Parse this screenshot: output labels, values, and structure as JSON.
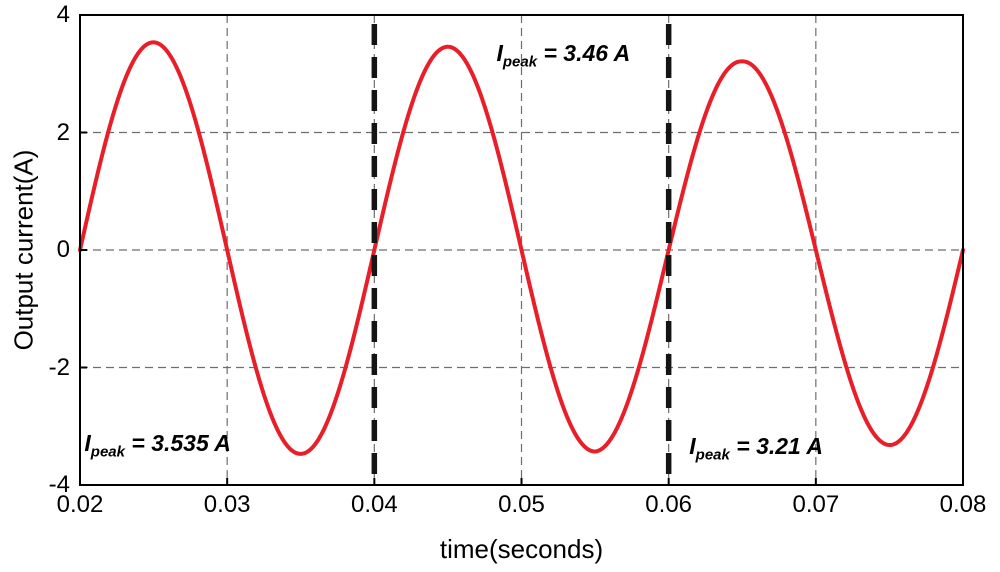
{
  "chart_data": {
    "type": "line",
    "title": "",
    "xlabel": "time(seconds)",
    "ylabel": "Output current(A)",
    "xlim": [
      0.02,
      0.08
    ],
    "ylim": [
      -4,
      4
    ],
    "xticks": [
      "0.02",
      "0.03",
      "0.04",
      "0.05",
      "0.06",
      "0.07",
      "0.08"
    ],
    "xtick_values": [
      0.02,
      0.03,
      0.04,
      0.05,
      0.06,
      0.07,
      0.08
    ],
    "yticks": [
      "4",
      "2",
      "0",
      "-2",
      "-4"
    ],
    "ytick_values": [
      4,
      2,
      0,
      -2,
      -4
    ],
    "grid": true,
    "legend": "none",
    "colors": {
      "background": "#ffffff",
      "grid": "#6e6e6e",
      "frame": "#000000",
      "cursor": "#141414",
      "series": "#e81f29"
    },
    "series": [
      {
        "name": "output current",
        "color": "#e81f29",
        "waveform": "sine",
        "frequency_hz": 50,
        "zero_crossing_t": 0.02,
        "amplitude_anchors": {
          "t": [
            0.02,
            0.025,
            0.035,
            0.045,
            0.055,
            0.065,
            0.075,
            0.08
          ],
          "a": [
            3.55,
            3.535,
            3.47,
            3.46,
            3.43,
            3.21,
            3.32,
            3.35
          ]
        },
        "peaks": [
          {
            "t": 0.025,
            "amps": 3.535
          },
          {
            "t": 0.045,
            "amps": 3.46
          },
          {
            "t": 0.065,
            "amps": 3.21
          }
        ]
      }
    ],
    "cursor_lines": [
      0.04,
      0.06
    ],
    "annotations": [
      {
        "symbol": "I",
        "subscript": "peak",
        "value": " = 3.535 A",
        "x": 0.0203,
        "y_top": -3.07
      },
      {
        "symbol": "I",
        "subscript": "peak",
        "value": " = 3.46 A",
        "x": 0.0483,
        "y_top": 3.57
      },
      {
        "symbol": "I",
        "subscript": "peak",
        "value": " = 3.21 A",
        "x": 0.0614,
        "y_top": -3.12
      }
    ]
  }
}
